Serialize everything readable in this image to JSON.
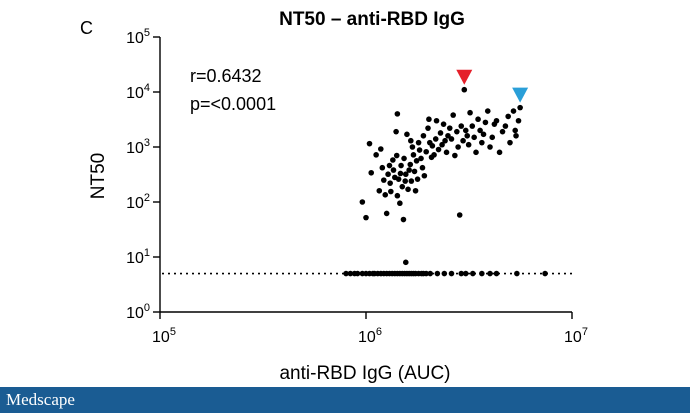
{
  "panel_label": "C",
  "brand": "Medscape",
  "colors": {
    "points": "#000000",
    "red_marker": "#e5202a",
    "blue_marker": "#2a9fd8",
    "footer": "#1a5c93"
  },
  "chart_data": {
    "type": "scatter",
    "title": "NT50 – anti-RBD IgG",
    "xlabel": "anti-RBD IgG (AUC)",
    "ylabel": "NT50",
    "x_scale": "log",
    "y_scale": "log",
    "xlim": [
      100000,
      10000000
    ],
    "ylim": [
      1,
      100000
    ],
    "x_ticks": [
      {
        "value": 100000,
        "base": "10",
        "exp": "5"
      },
      {
        "value": 1000000,
        "base": "10",
        "exp": "6"
      },
      {
        "value": 10000000,
        "base": "10",
        "exp": "7"
      }
    ],
    "y_ticks": [
      {
        "value": 1,
        "base": "10",
        "exp": "0"
      },
      {
        "value": 10,
        "base": "10",
        "exp": "1"
      },
      {
        "value": 100,
        "base": "10",
        "exp": "2"
      },
      {
        "value": 1000,
        "base": "10",
        "exp": "3"
      },
      {
        "value": 10000,
        "base": "10",
        "exp": "4"
      },
      {
        "value": 100000,
        "base": "10",
        "exp": "5"
      }
    ],
    "annotations": {
      "r": "r=0.6432",
      "p": "p=<0.0001"
    },
    "threshold": 5,
    "highlighted": [
      {
        "x": 3000000,
        "y": 11000,
        "color": "red"
      },
      {
        "x": 5600000,
        "y": 5200,
        "color": "blue"
      }
    ],
    "points": [
      [
        960000,
        100
      ],
      [
        1000000,
        52
      ],
      [
        1040000,
        1150
      ],
      [
        1060000,
        340
      ],
      [
        1120000,
        720
      ],
      [
        1160000,
        160
      ],
      [
        1180000,
        920
      ],
      [
        1200000,
        420
      ],
      [
        1220000,
        250
      ],
      [
        1240000,
        135
      ],
      [
        1260000,
        62
      ],
      [
        1280000,
        320
      ],
      [
        1300000,
        460
      ],
      [
        1310000,
        220
      ],
      [
        1320000,
        155
      ],
      [
        1350000,
        580
      ],
      [
        1360000,
        380
      ],
      [
        1380000,
        280
      ],
      [
        1400000,
        1900
      ],
      [
        1410000,
        700
      ],
      [
        1420000,
        130
      ],
      [
        1440000,
        260
      ],
      [
        1460000,
        95
      ],
      [
        1470000,
        330
      ],
      [
        1480000,
        460
      ],
      [
        1500000,
        190
      ],
      [
        1520000,
        48
      ],
      [
        1530000,
        620
      ],
      [
        1550000,
        240
      ],
      [
        1560000,
        320
      ],
      [
        1580000,
        1700
      ],
      [
        1600000,
        170
      ],
      [
        1620000,
        380
      ],
      [
        1640000,
        480
      ],
      [
        1660000,
        240
      ],
      [
        1680000,
        1000
      ],
      [
        1700000,
        720
      ],
      [
        1720000,
        360
      ],
      [
        1740000,
        160
      ],
      [
        1760000,
        560
      ],
      [
        1780000,
        260
      ],
      [
        1800000,
        1200
      ],
      [
        1820000,
        880
      ],
      [
        1850000,
        620
      ],
      [
        1880000,
        420
      ],
      [
        1900000,
        1600
      ],
      [
        1920000,
        300
      ],
      [
        1960000,
        820
      ],
      [
        2000000,
        2200
      ],
      [
        2040000,
        1200
      ],
      [
        2080000,
        650
      ],
      [
        2100000,
        1050
      ],
      [
        2140000,
        720
      ],
      [
        2180000,
        1400
      ],
      [
        2200000,
        3000
      ],
      [
        2250000,
        900
      ],
      [
        2300000,
        1800
      ],
      [
        2340000,
        1100
      ],
      [
        2380000,
        2600
      ],
      [
        2420000,
        1300
      ],
      [
        2460000,
        800
      ],
      [
        2500000,
        1600
      ],
      [
        2550000,
        2200
      ],
      [
        2600000,
        1400
      ],
      [
        2650000,
        3800
      ],
      [
        2700000,
        700
      ],
      [
        2760000,
        1900
      ],
      [
        2800000,
        1000
      ],
      [
        2850000,
        58
      ],
      [
        2900000,
        2400
      ],
      [
        2960000,
        1300
      ],
      [
        3050000,
        2000
      ],
      [
        3100000,
        1600
      ],
      [
        3150000,
        1100
      ],
      [
        3200000,
        4200
      ],
      [
        3280000,
        2400
      ],
      [
        3350000,
        1500
      ],
      [
        3420000,
        800
      ],
      [
        3500000,
        3200
      ],
      [
        3580000,
        2000
      ],
      [
        3650000,
        1200
      ],
      [
        3720000,
        1700
      ],
      [
        3800000,
        2800
      ],
      [
        3900000,
        4500
      ],
      [
        4000000,
        1000
      ],
      [
        4100000,
        1500
      ],
      [
        4200000,
        2600
      ],
      [
        4300000,
        3000
      ],
      [
        4450000,
        800
      ],
      [
        4600000,
        1900
      ],
      [
        4750000,
        2400
      ],
      [
        4900000,
        3600
      ],
      [
        5000000,
        1200
      ],
      [
        5200000,
        4500
      ],
      [
        5350000,
        1600
      ],
      [
        5500000,
        3000
      ],
      [
        5300000,
        2000
      ],
      [
        2020000,
        3200
      ],
      [
        1650000,
        1300
      ],
      [
        1420000,
        4000
      ],
      [
        1560000,
        8
      ]
    ],
    "threshold_points": [
      800000,
      840000,
      880000,
      910000,
      960000,
      1000000,
      1040000,
      1080000,
      1100000,
      1140000,
      1180000,
      1220000,
      1260000,
      1300000,
      1340000,
      1380000,
      1420000,
      1460000,
      1500000,
      1540000,
      1580000,
      1620000,
      1660000,
      1700000,
      1740000,
      1800000,
      1860000,
      1900000,
      1960000,
      2050000,
      2220000,
      2400000,
      2600000,
      2900000,
      3050000,
      3300000,
      3650000,
      4000000,
      4300000,
      5400000,
      7400000
    ]
  }
}
